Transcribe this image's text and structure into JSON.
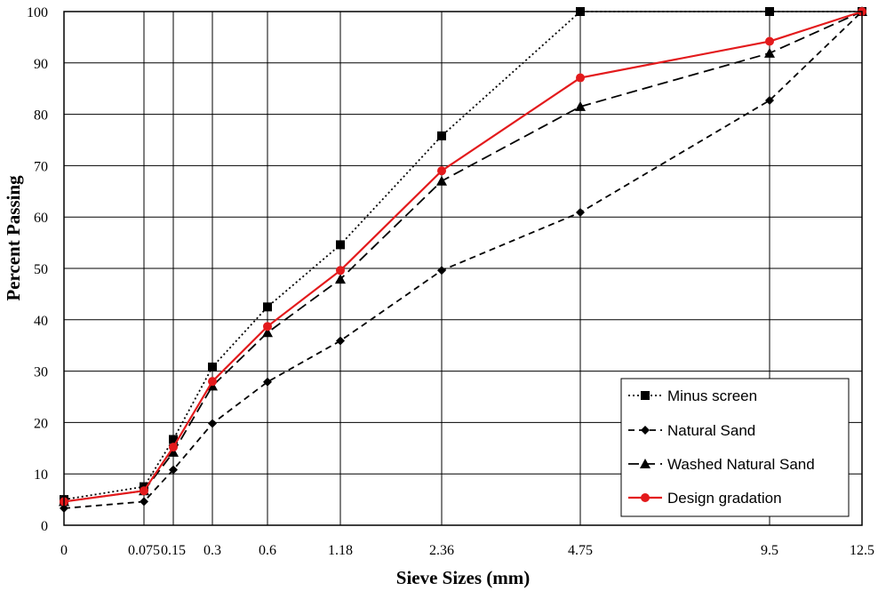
{
  "chart_data": {
    "type": "line",
    "title": "",
    "xlabel": "Sieve Sizes (mm)",
    "ylabel": "Percent Passing",
    "x_tick_labels": [
      "0",
      "0.075",
      "0.15",
      "0.3",
      "0.6",
      "1.18",
      "2.36",
      "4.75",
      "9.5",
      "12.5"
    ],
    "ylim": [
      0,
      100
    ],
    "y_ticks": [
      0,
      10,
      20,
      30,
      40,
      50,
      60,
      70,
      80,
      90,
      100
    ],
    "grid": true,
    "legend_position": "bottom-right",
    "series": [
      {
        "name": "Minus screen",
        "line_style": "dotted",
        "marker": "square",
        "color": "#000000",
        "values": [
          5,
          7.5,
          16.7,
          30.8,
          42.5,
          54.6,
          75.8,
          100,
          100,
          100
        ]
      },
      {
        "name": "Natural Sand",
        "line_style": "dashed",
        "marker": "diamond",
        "color": "#000000",
        "values": [
          3.3,
          4.6,
          10.8,
          19.8,
          27.9,
          35.9,
          49.6,
          60.9,
          82.7,
          100
        ]
      },
      {
        "name": "Washed Natural Sand",
        "line_style": "long-dashed",
        "marker": "triangle",
        "color": "#000000",
        "values": [
          4.6,
          6.7,
          14.2,
          27.1,
          37.5,
          47.9,
          67,
          81.5,
          91.9,
          100
        ]
      },
      {
        "name": "Design gradation",
        "line_style": "solid",
        "marker": "circle",
        "color": "#e31a1c",
        "values": [
          4.6,
          6.7,
          15.2,
          28,
          38.7,
          49.6,
          69,
          87.1,
          94.2,
          100
        ]
      }
    ]
  }
}
